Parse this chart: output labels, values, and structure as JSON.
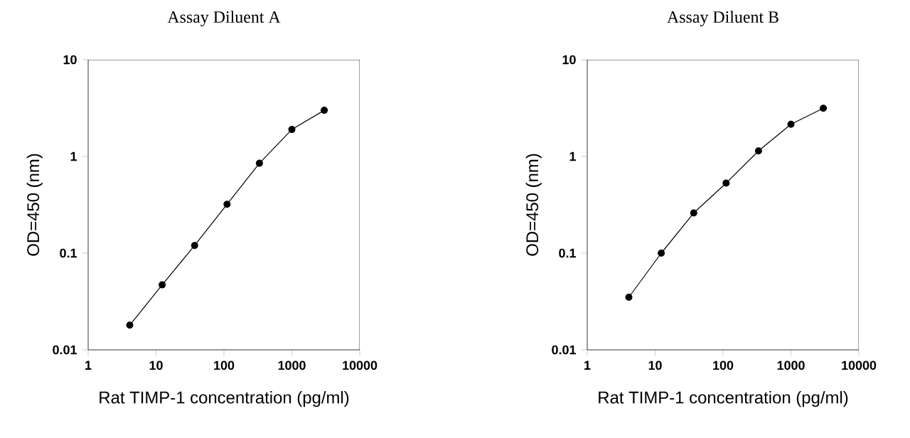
{
  "chart_data": [
    {
      "type": "line",
      "title": "Assay Diluent A",
      "xlabel": "Rat TIMP-1 concentration (pg/ml)",
      "ylabel": "OD=450 (nm)",
      "log": "xy",
      "marker": "circle",
      "line_style": "solid",
      "x": [
        4.1,
        12.3,
        37,
        111,
        333,
        1000,
        3000
      ],
      "series": [
        {
          "color": "#000000",
          "values": [
            0.018,
            0.047,
            0.12,
            0.32,
            0.85,
            1.9,
            3.0
          ]
        }
      ],
      "xlim": [
        1,
        10000
      ],
      "ylim": [
        0.01,
        10
      ],
      "xticks": [
        1,
        10,
        100,
        1000,
        10000
      ],
      "yticks": [
        0.01,
        0.1,
        1,
        10
      ]
    },
    {
      "type": "line",
      "title": "Assay Diluent B",
      "xlabel": "Rat TIMP-1 concentration (pg/ml)",
      "ylabel": "OD=450 (nm)",
      "log": "xy",
      "marker": "circle",
      "line_style": "solid",
      "x": [
        4.1,
        12.3,
        37,
        111,
        333,
        1000,
        3000
      ],
      "series": [
        {
          "color": "#000000",
          "values": [
            0.035,
            0.1,
            0.26,
            0.53,
            1.14,
            2.15,
            3.15
          ]
        }
      ],
      "xlim": [
        1,
        10000
      ],
      "ylim": [
        0.01,
        10
      ],
      "xticks": [
        1,
        10,
        100,
        1000,
        10000
      ],
      "yticks": [
        0.01,
        0.1,
        1,
        10
      ]
    }
  ]
}
